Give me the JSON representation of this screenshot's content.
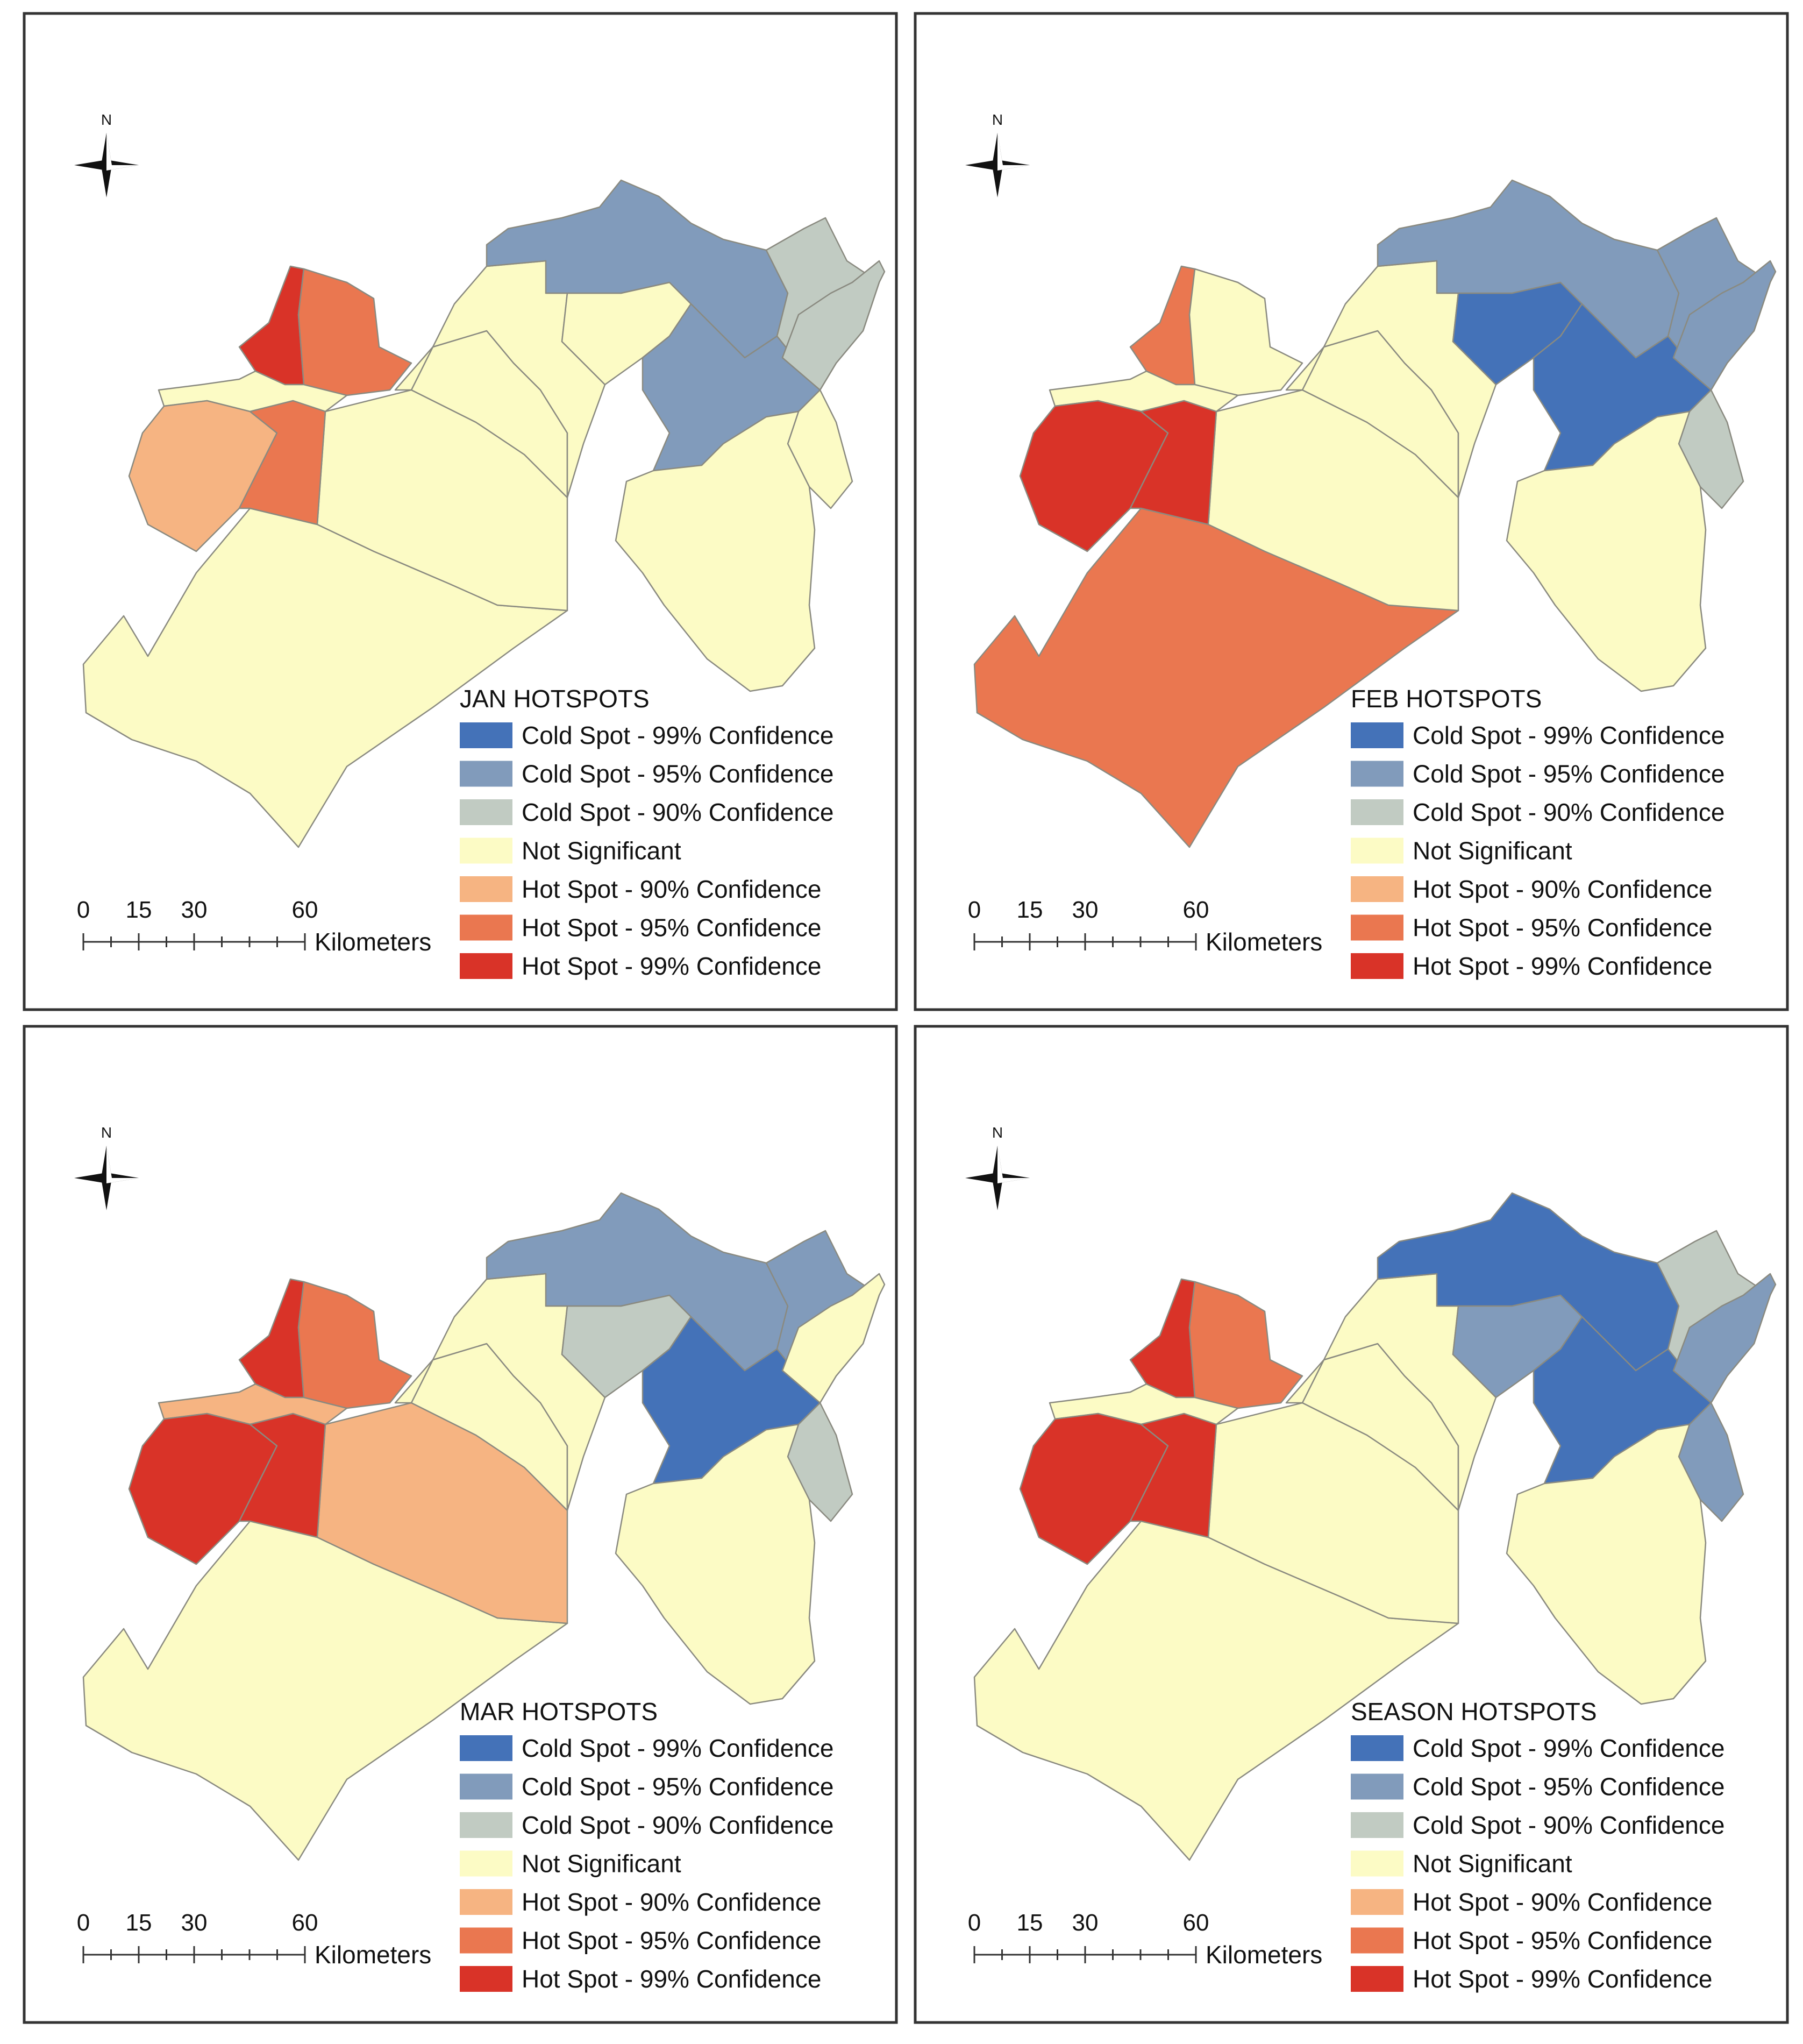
{
  "colors": {
    "cold99": "#4472b8",
    "cold95": "#819bbb",
    "cold90": "#c1cbc2",
    "notsig": "#fcfbc5",
    "hot90": "#f6b482",
    "hot95": "#ea7750",
    "hot99": "#d93328"
  },
  "legend_items": [
    {
      "key": "cold99",
      "label": "Cold Spot - 99% Confidence"
    },
    {
      "key": "cold95",
      "label": "Cold Spot - 95% Confidence"
    },
    {
      "key": "cold90",
      "label": "Cold Spot - 90% Confidence"
    },
    {
      "key": "notsig",
      "label": "Not Significant"
    },
    {
      "key": "hot90",
      "label": "Hot Spot - 90% Confidence"
    },
    {
      "key": "hot95",
      "label": "Hot Spot - 95% Confidence"
    },
    {
      "key": "hot99",
      "label": "Hot Spot - 99% Confidence"
    }
  ],
  "scale_bar": {
    "ticks": [
      "0",
      "15",
      "30",
      "60"
    ],
    "unit": "Kilometers"
  },
  "north_label": "N",
  "panels": [
    {
      "title": "JAN HOTSPOTS",
      "regions": {
        "nw_strip": "hot99",
        "nw_rect": "hot95",
        "coast_north": "notsig",
        "coast_small": "hot90",
        "city_core": "hot95",
        "south_large": "notsig",
        "central_wedge": "notsig",
        "central_mid": "notsig",
        "north_band": "notsig",
        "ne_top": "cold95",
        "ne_center": "notsig",
        "ne_gray": "cold90",
        "east_cluster": "cold95",
        "ne_far": "cold90",
        "east_small": "notsig",
        "se_south": "notsig"
      }
    },
    {
      "title": "FEB HOTSPOTS",
      "regions": {
        "nw_strip": "hot95",
        "nw_rect": "notsig",
        "coast_north": "notsig",
        "coast_small": "hot99",
        "city_core": "hot99",
        "south_large": "hot95",
        "central_wedge": "notsig",
        "central_mid": "notsig",
        "north_band": "notsig",
        "ne_top": "cold95",
        "ne_center": "cold99",
        "ne_gray": "cold95",
        "east_cluster": "cold99",
        "ne_far": "cold95",
        "east_small": "cold90",
        "se_south": "notsig"
      }
    },
    {
      "title": "MAR HOTSPOTS",
      "regions": {
        "nw_strip": "hot99",
        "nw_rect": "hot95",
        "coast_north": "hot90",
        "coast_small": "hot99",
        "city_core": "hot99",
        "south_large": "notsig",
        "central_wedge": "hot90",
        "central_mid": "notsig",
        "north_band": "notsig",
        "ne_top": "cold95",
        "ne_center": "cold90",
        "ne_gray": "cold95",
        "east_cluster": "cold99",
        "ne_far": "notsig",
        "east_small": "cold90",
        "se_south": "notsig"
      }
    },
    {
      "title": "SEASON HOTSPOTS",
      "regions": {
        "nw_strip": "hot99",
        "nw_rect": "hot95",
        "coast_north": "notsig",
        "coast_small": "hot99",
        "city_core": "hot99",
        "south_large": "notsig",
        "central_wedge": "notsig",
        "central_mid": "notsig",
        "north_band": "notsig",
        "ne_top": "cold99",
        "ne_center": "cold95",
        "ne_gray": "cold90",
        "east_cluster": "cold99",
        "ne_far": "cold95",
        "east_small": "cold95",
        "se_south": "notsig"
      }
    }
  ]
}
